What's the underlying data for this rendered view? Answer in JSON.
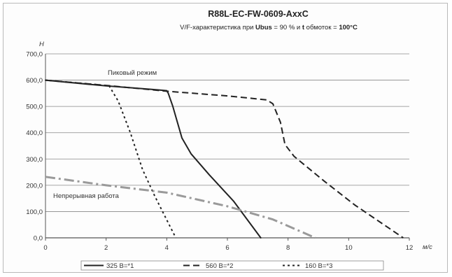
{
  "chart_data": {
    "type": "line",
    "title": "R88L-EC-FW-0609-AxxC",
    "subtitle": {
      "part1": "V/F-характеристика при ",
      "part2": "Ubus",
      "part3": " = 90 % и ",
      "part4": "t",
      "part5": " обмоток = ",
      "part6": "100°C"
    },
    "ylabel": "Н",
    "xlabel": "м/с",
    "xlim": [
      0,
      12
    ],
    "ylim": [
      0,
      700
    ],
    "x_ticks": [
      "0",
      "2",
      "4",
      "6",
      "8",
      "10",
      "12"
    ],
    "y_ticks": [
      "0,0",
      "100,0",
      "200,0",
      "300,0",
      "400,0",
      "500,0",
      "600,0",
      "700,0"
    ],
    "grid": "horizontal",
    "legend_position": "bottom",
    "annotations": {
      "peak": "Пиковый режим",
      "continuous": "Непрерывная работа"
    },
    "series": [
      {
        "name": "325 В=*1",
        "style": "solid",
        "color": "#222222",
        "points": [
          [
            0,
            600
          ],
          [
            2,
            578
          ],
          [
            3.5,
            565
          ],
          [
            4.0,
            560
          ],
          [
            4.05,
            550
          ],
          [
            4.2,
            500
          ],
          [
            4.5,
            380
          ],
          [
            4.8,
            320
          ],
          [
            5.4,
            240
          ],
          [
            6.2,
            140
          ],
          [
            7.1,
            0
          ]
        ]
      },
      {
        "name": "560 В=*2",
        "style": "dashed",
        "color": "#222222",
        "points": [
          [
            0,
            600
          ],
          [
            2,
            580
          ],
          [
            4,
            558
          ],
          [
            6,
            540
          ],
          [
            7.3,
            525
          ],
          [
            7.5,
            510
          ],
          [
            7.75,
            440
          ],
          [
            7.9,
            355
          ],
          [
            8.2,
            310
          ],
          [
            9.2,
            215
          ],
          [
            10.2,
            125
          ],
          [
            11.8,
            0
          ]
        ]
      },
      {
        "name": "160 В=*3",
        "style": "dotted",
        "color": "#222222",
        "points": [
          [
            0,
            600
          ],
          [
            1.5,
            585
          ],
          [
            2.1,
            578
          ],
          [
            2.4,
            520
          ],
          [
            2.8,
            400
          ],
          [
            3.2,
            260
          ],
          [
            3.6,
            160
          ],
          [
            4.1,
            45
          ],
          [
            4.3,
            0
          ]
        ]
      },
      {
        "name": "",
        "style": "dashdot",
        "color": "#9a9a9a",
        "points": [
          [
            0,
            232
          ],
          [
            2,
            200
          ],
          [
            4,
            172
          ],
          [
            6,
            120
          ],
          [
            7.5,
            70
          ],
          [
            8.9,
            0
          ]
        ]
      }
    ]
  }
}
